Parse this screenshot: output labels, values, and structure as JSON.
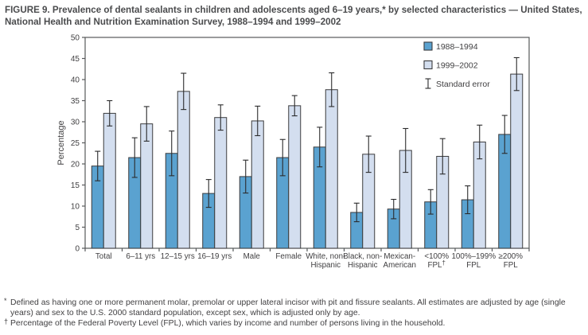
{
  "title": "FIGURE 9. Prevalence of dental sealants in children and adolescents aged 6–19 years,* by selected characteristics — United States, National Health and Nutrition Examination Survey, 1988–1994 and 1999–2002",
  "chart_data": {
    "type": "bar",
    "title": "",
    "xlabel": "",
    "ylabel": "Percentage",
    "ylim": [
      0,
      50
    ],
    "ytick_step": 5,
    "grid": false,
    "legend_position": "top-right-inside",
    "legend_error_label": "Standard error",
    "categories": [
      "Total",
      "6–11 yrs",
      "12–15 yrs",
      "16–19 yrs",
      "Male",
      "Female",
      "White, non-\nHispanic",
      "Black, non-\nHispanic",
      "Mexican-\nAmerican",
      "<100%\nFPL†",
      "100%–199%\nFPL",
      "≥200%\nFPL"
    ],
    "series": [
      {
        "name": "1988–1994",
        "color": "#5AA2D0",
        "values": [
          19.5,
          21.5,
          22.5,
          13.0,
          17.0,
          21.5,
          24.0,
          8.5,
          9.3,
          11.0,
          11.5,
          27.0
        ],
        "standard_error": [
          3.5,
          4.7,
          5.3,
          3.3,
          3.9,
          4.3,
          4.7,
          2.2,
          2.3,
          2.9,
          3.3,
          4.5
        ]
      },
      {
        "name": "1999–2002",
        "color": "#D3DEEF",
        "values": [
          32.0,
          29.5,
          37.2,
          31.0,
          30.2,
          33.8,
          37.6,
          22.3,
          23.2,
          21.8,
          25.2,
          41.3
        ],
        "standard_error": [
          3.0,
          4.1,
          4.3,
          3.0,
          3.5,
          2.4,
          4.0,
          4.3,
          5.2,
          4.2,
          4.0,
          3.9
        ]
      }
    ]
  },
  "footnotes": [
    {
      "marker": "*",
      "text": "Defined as having one or more permanent molar, premolar or upper lateral incisor with pit and fissure sealants. All estimates are adjusted by age (single years) and sex to the U.S. 2000 standard population, except sex, which is adjusted only by age."
    },
    {
      "marker": "†",
      "text": "Percentage of the Federal Poverty Level (FPL), which varies by income and number of persons living in the household."
    }
  ],
  "colors": {
    "series_1988": "#5AA2D0",
    "series_1999": "#D3DEEF",
    "bar_outline": "#3B3B3D",
    "axis": "#58595B",
    "error_bar": "#2B2B2C",
    "text": "#414042",
    "title_text": "#4A4B4D"
  }
}
